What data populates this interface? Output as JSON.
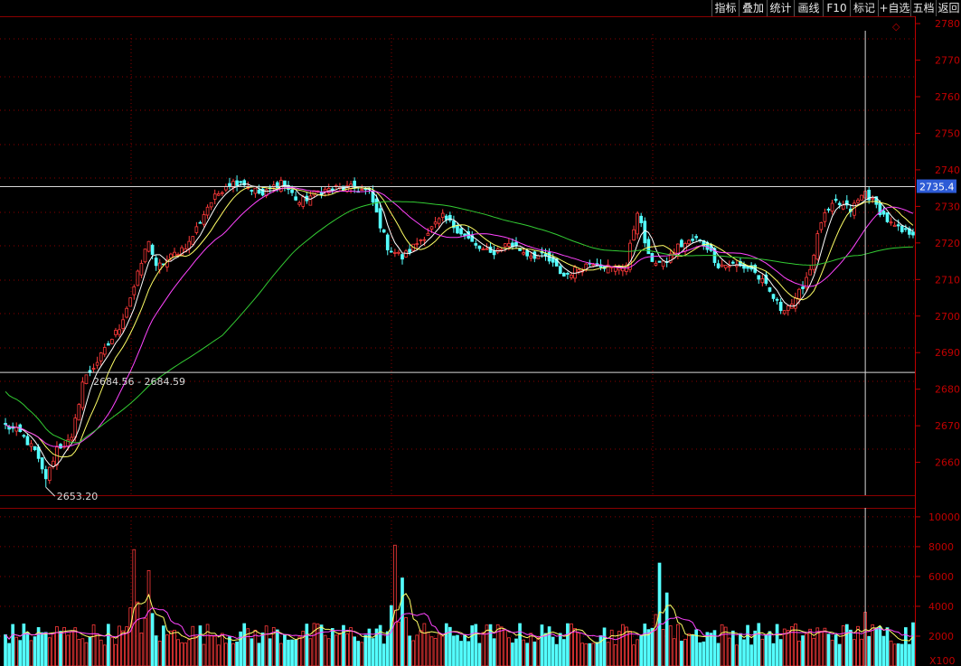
{
  "toolbar": {
    "buttons": [
      "指标",
      "叠加",
      "统计",
      "画线",
      "F10",
      "标记",
      "+自选",
      "五档",
      "返回"
    ]
  },
  "colors": {
    "background": "#000000",
    "up": "#ff3a3a",
    "down": "#54ffff",
    "ma5": "#ffffff",
    "ma10": "#ffff66",
    "ma20": "#ff44ff",
    "ma60": "#33cc33",
    "axis": "#c00000",
    "grid": "#8b0000",
    "crosshair": "#d8d8d8",
    "price_tag_bg": "#2d5bd6"
  },
  "chart_data": [
    {
      "type": "candlestick",
      "y_axis_ticks": [
        2660,
        2670,
        2680,
        2690,
        2700,
        2710,
        2720,
        2730,
        2740,
        2750,
        2760,
        2770,
        2780
      ],
      "ylim": [
        2651,
        2782
      ],
      "crosshair_price_label": "2735.4",
      "crosshair_price": 2735.4,
      "annotations": {
        "low_label": "2653.20",
        "low_value": 2653.2,
        "low_bar_index": 11,
        "line_label": "2684.56 - 2684.59",
        "line_value": 2684.57
      },
      "indicator_lines": [
        "MA5",
        "MA10",
        "MA20",
        "MA60"
      ],
      "bar_count": 248,
      "crosshair_bar_index": 234,
      "anchor_closes": [
        [
          0,
          2670
        ],
        [
          4,
          2668
        ],
        [
          8,
          2663
        ],
        [
          11,
          2655
        ],
        [
          14,
          2664
        ],
        [
          18,
          2666
        ],
        [
          21,
          2682
        ],
        [
          26,
          2689
        ],
        [
          31,
          2697
        ],
        [
          35,
          2708
        ],
        [
          39,
          2721
        ],
        [
          41,
          2713
        ],
        [
          46,
          2717
        ],
        [
          50,
          2720
        ],
        [
          55,
          2730
        ],
        [
          60,
          2736
        ],
        [
          64,
          2737
        ],
        [
          70,
          2733
        ],
        [
          75,
          2737
        ],
        [
          80,
          2731
        ],
        [
          85,
          2734
        ],
        [
          90,
          2735
        ],
        [
          95,
          2735
        ],
        [
          99,
          2734
        ],
        [
          101,
          2728
        ],
        [
          104,
          2719
        ],
        [
          108,
          2716
        ],
        [
          114,
          2722
        ],
        [
          119,
          2727
        ],
        [
          124,
          2723
        ],
        [
          128,
          2719
        ],
        [
          132,
          2717
        ],
        [
          137,
          2720
        ],
        [
          142,
          2717
        ],
        [
          147,
          2716
        ],
        [
          152,
          2711
        ],
        [
          156,
          2713
        ],
        [
          160,
          2715
        ],
        [
          165,
          2713
        ],
        [
          169,
          2714
        ],
        [
          172,
          2729
        ],
        [
          175,
          2716
        ],
        [
          179,
          2714
        ],
        [
          183,
          2719
        ],
        [
          188,
          2721
        ],
        [
          191,
          2719
        ],
        [
          194,
          2714
        ],
        [
          198,
          2714
        ],
        [
          203,
          2713
        ],
        [
          207,
          2708
        ],
        [
          211,
          2702
        ],
        [
          215,
          2704
        ],
        [
          219,
          2713
        ],
        [
          222,
          2726
        ],
        [
          226,
          2731
        ],
        [
          230,
          2729
        ],
        [
          234,
          2734
        ],
        [
          237,
          2730
        ],
        [
          241,
          2725
        ],
        [
          244,
          2723
        ],
        [
          247,
          2723
        ]
      ]
    },
    {
      "type": "bar",
      "panel": "volume",
      "y_axis_ticks": [
        2000,
        4000,
        6000,
        8000,
        10000
      ],
      "unit_label": "X100",
      "ylim": [
        0,
        10600
      ],
      "spikes": [
        [
          35,
          7800
        ],
        [
          39,
          6400
        ],
        [
          106,
          8100
        ],
        [
          108,
          5900
        ],
        [
          178,
          6900
        ],
        [
          180,
          4900
        ],
        [
          234,
          3600
        ],
        [
          247,
          2900
        ]
      ],
      "indicator_lines": [
        "MAVOL5",
        "MAVOL10"
      ]
    }
  ]
}
